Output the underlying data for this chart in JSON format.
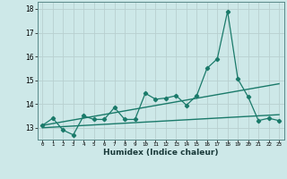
{
  "xlabel": "Humidex (Indice chaleur)",
  "xlim": [
    -0.5,
    23.5
  ],
  "ylim": [
    12.5,
    18.3
  ],
  "yticks": [
    13,
    14,
    15,
    16,
    17,
    18
  ],
  "xticks": [
    0,
    1,
    2,
    3,
    4,
    5,
    6,
    7,
    8,
    9,
    10,
    11,
    12,
    13,
    14,
    15,
    16,
    17,
    18,
    19,
    20,
    21,
    22,
    23
  ],
  "bg_color": "#cde8e8",
  "grid_color": "#b8d0d0",
  "line_color": "#1a7a6a",
  "line1_x": [
    0,
    1,
    2,
    3,
    4,
    5,
    6,
    7,
    8,
    9,
    10,
    11,
    12,
    13,
    14,
    15,
    16,
    17,
    18,
    19,
    20,
    21,
    22,
    23
  ],
  "line1_y": [
    13.1,
    13.4,
    12.9,
    12.7,
    13.5,
    13.35,
    13.35,
    13.85,
    13.35,
    13.35,
    14.45,
    14.2,
    14.25,
    14.35,
    13.95,
    14.35,
    15.5,
    15.9,
    17.9,
    15.05,
    14.3,
    13.3,
    13.4,
    13.3
  ],
  "line2_x": [
    0,
    23
  ],
  "line2_y": [
    13.1,
    14.85
  ],
  "line3_x": [
    0,
    23
  ],
  "line3_y": [
    13.0,
    13.55
  ]
}
